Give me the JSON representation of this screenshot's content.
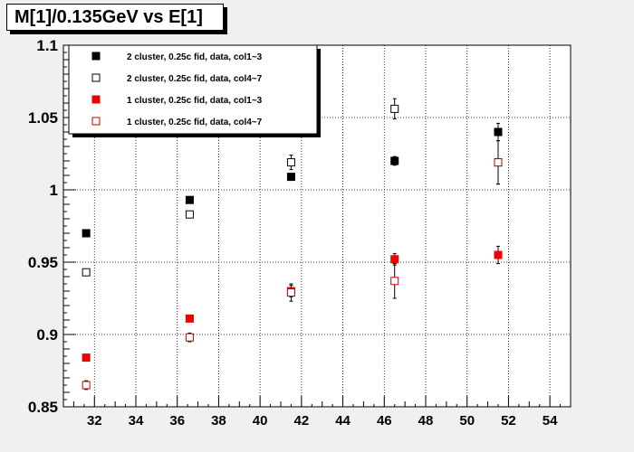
{
  "title": "M[1]/0.135GeV vs E[1]",
  "chart_data": {
    "type": "scatter",
    "title": "M[1]/0.135GeV vs E[1]",
    "xlabel": "",
    "ylabel": "",
    "xlim": [
      30.5,
      55
    ],
    "ylim": [
      0.85,
      1.1
    ],
    "x_ticks": [
      32,
      34,
      36,
      38,
      40,
      42,
      44,
      46,
      48,
      50,
      52,
      54
    ],
    "y_ticks": [
      0.85,
      0.9,
      0.95,
      1,
      1.05,
      1.1
    ],
    "y_tick_labels": [
      "0.85",
      "0.9",
      "0.95",
      "1",
      "1.05",
      "1.1"
    ],
    "grid": true,
    "legend_placement": "top-left",
    "series": [
      {
        "name": "2 cluster, 0.25c fid, data, col1~3",
        "marker": "filled-square",
        "color": "#000000",
        "x": [
          31.6,
          36.6,
          41.5,
          46.5,
          51.5
        ],
        "y": [
          0.97,
          0.993,
          1.009,
          1.02,
          1.04
        ],
        "err": [
          0.001,
          0.002,
          0.002,
          0.003,
          0.006
        ]
      },
      {
        "name": "2 cluster, 0.25c fid, data, col4~7",
        "marker": "open-square",
        "color": "#000000",
        "x": [
          31.6,
          36.6,
          41.5,
          46.5,
          51.5
        ],
        "y": [
          0.943,
          0.983,
          1.019,
          1.056,
          1.019
        ],
        "err": [
          0.002,
          0.002,
          0.005,
          0.007,
          0.015
        ]
      },
      {
        "name": "1 cluster, 0.25c fid, data, col1~3",
        "marker": "filled-square",
        "color": "#ee0000",
        "x": [
          31.6,
          36.6,
          41.5,
          46.5,
          51.5
        ],
        "y": [
          0.884,
          0.911,
          0.93,
          0.952,
          0.955
        ],
        "err": [
          0.001,
          0.002,
          0.004,
          0.004,
          0.006
        ]
      },
      {
        "name": "1 cluster, 0.25c fid, data, col4~7",
        "marker": "open-square",
        "color": "#cc0000",
        "x": [
          31.6,
          36.6,
          41.5,
          46.5,
          51.5
        ],
        "y": [
          0.865,
          0.898,
          0.929,
          0.937,
          1.019
        ],
        "err": [
          0.003,
          0.003,
          0.006,
          0.012,
          0.015
        ]
      }
    ]
  }
}
